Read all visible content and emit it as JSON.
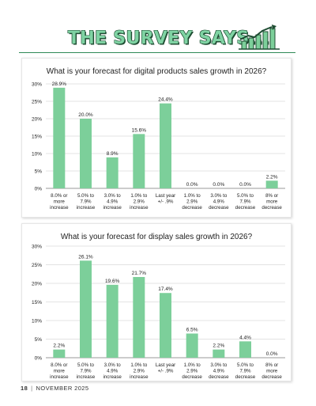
{
  "header": {
    "title": "THE SURVEY SAYS...",
    "logo_icon": "bar-chart-growth-icon"
  },
  "footer": {
    "page_number": "18",
    "separator": "|",
    "issue": "NOVEMBER 2025"
  },
  "colors": {
    "bar": "#7ccf9a",
    "headline_fill": "#7fd3a3",
    "headline_outline": "#1f4d33",
    "grid": "#c8c8c8",
    "text": "#222222"
  },
  "chart_data": [
    {
      "type": "bar",
      "title": "What is your forecast for digital products sales growth in 2026?",
      "categories": [
        [
          "8.0% or",
          "more",
          "increase"
        ],
        [
          "5.0% to",
          "7.9%",
          "increase"
        ],
        [
          "3.0% to",
          "4.9%",
          "increase"
        ],
        [
          "1.0% to",
          "2.9%",
          "increase"
        ],
        [
          "Last year",
          "+/- .9%"
        ],
        [
          "1.0% to",
          "2.9%",
          "decrease"
        ],
        [
          "3.0% to",
          "4.9%",
          "decrease"
        ],
        [
          "5.0% to",
          "7.9%",
          "decrease"
        ],
        [
          "8% or",
          "more",
          "decrease"
        ]
      ],
      "values": [
        28.9,
        20.0,
        8.9,
        15.6,
        24.4,
        0.0,
        0.0,
        0.0,
        2.2
      ],
      "value_labels": [
        "28.9%",
        "20.0%",
        "8.9%",
        "15.6%",
        "24.4%",
        "0.0%",
        "0.0%",
        "0.0%",
        "2.2%"
      ],
      "ylim": [
        0,
        30
      ],
      "yticks": [
        0,
        5,
        10,
        15,
        20,
        25,
        30
      ],
      "ytick_labels": [
        "0%",
        "5%",
        "10%",
        "15%",
        "20%",
        "25%",
        "30%"
      ],
      "grid": true,
      "legend": "none"
    },
    {
      "type": "bar",
      "title": "What is your forecast for display sales growth in 2026?",
      "categories": [
        [
          "8.0% or",
          "more",
          "increase"
        ],
        [
          "5.0% to",
          "7.9%",
          "increase"
        ],
        [
          "3.0% to",
          "4.9%",
          "increase"
        ],
        [
          "1.0% to",
          "2.9%",
          "increase"
        ],
        [
          "Last year",
          "+/- .9%"
        ],
        [
          "1.0% to",
          "2.9%",
          "decrease"
        ],
        [
          "3.0% to",
          "4.9%",
          "decrease"
        ],
        [
          "5.0% to",
          "7.9%",
          "decrease"
        ],
        [
          "8% or",
          "more",
          "decrease"
        ]
      ],
      "values": [
        2.2,
        26.1,
        19.6,
        21.7,
        17.4,
        6.5,
        2.2,
        4.4,
        0.0
      ],
      "value_labels": [
        "2.2%",
        "26.1%",
        "19.6%",
        "21.7%",
        "17.4%",
        "6.5%",
        "2.2%",
        "4.4%",
        "0.0%"
      ],
      "ylim": [
        0,
        30
      ],
      "yticks": [
        0,
        5,
        10,
        15,
        20,
        25,
        30
      ],
      "ytick_labels": [
        "0%",
        "5%",
        "10%",
        "15%",
        "20%",
        "25%",
        "30%"
      ],
      "grid": true,
      "legend": "none"
    }
  ]
}
